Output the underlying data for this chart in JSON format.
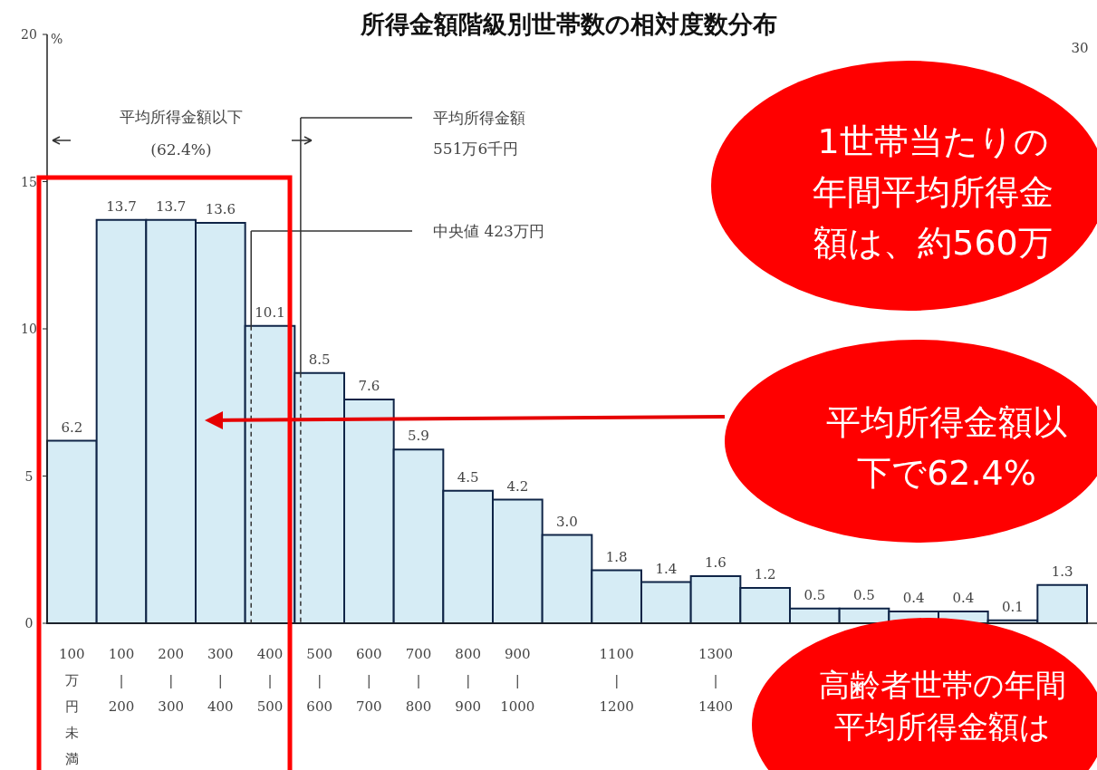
{
  "chart_data": {
    "type": "bar",
    "title": "所得金額階級別世帯数の相対度数分布",
    "ylabel": "%",
    "categories": [
      "100万円未満",
      "100 | 200",
      "200 | 300",
      "300 | 400",
      "400 | 500",
      "500 | 600",
      "600 | 700",
      "700 | 800",
      "800 | 900",
      "900 | 1000",
      null,
      "1100 | 1200",
      null,
      "1300 | 1400",
      null,
      null,
      null,
      null,
      null,
      null,
      null
    ],
    "values": [
      6.2,
      13.7,
      13.7,
      13.6,
      10.1,
      8.5,
      7.6,
      5.9,
      4.5,
      4.2,
      3.0,
      1.8,
      1.4,
      1.6,
      1.2,
      0.5,
      0.5,
      0.4,
      0.4,
      0.1,
      1.3
    ],
    "value_labels": [
      "6.2",
      "13.7",
      "13.7",
      "13.6",
      "10.1",
      "8.5",
      "7.6",
      "5.9",
      "4.5",
      "4.2",
      "3.0",
      "1.8",
      "1.4",
      "1.6",
      "1.2",
      "0.5",
      "0.5",
      "0.4",
      "0.4",
      "0.1",
      "1.3"
    ],
    "color": "#d6ecf5",
    "ylim": [
      0,
      20
    ],
    "yticks": [
      0,
      5,
      10,
      15,
      20
    ],
    "annotations": [
      "平均所得金額以下\n(62.4%)",
      "平均所得金額\n551万6千円",
      "中央値 423万円",
      "1世帯当たりの年間平均所得金額は、約560万",
      "平均所得金額以下で62.4%",
      "高齢者世帯の年間平均所得金額は",
      "30"
    ]
  }
}
